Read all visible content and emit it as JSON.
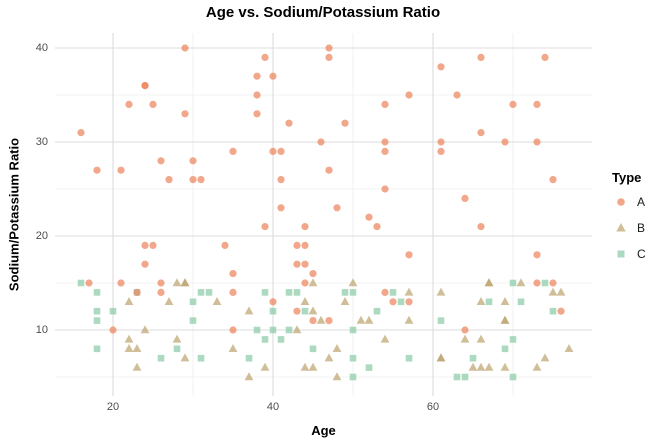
{
  "title": "Age vs. Sodium/Potassium Ratio",
  "colors": {
    "series_a": "#ED835D",
    "series_b": "#BCA570",
    "series_c": "#8CCCA7",
    "marker_opacity": 0.72,
    "grid_major": "#DCDCDC",
    "grid_minor": "#EFEFEF",
    "tick_text": "#4D4D4D",
    "text": "#000000"
  },
  "legend": {
    "title": "Type"
  },
  "chart_data": {
    "type": "scatter",
    "title": "Age vs. Sodium/Potassium Ratio",
    "xlabel": "Age",
    "ylabel": "Sodium/Potassium Ratio",
    "x_ticks": [
      20,
      40,
      60
    ],
    "y_ticks": [
      10,
      20,
      30,
      40
    ],
    "x_minor_gridlines": [
      30,
      50,
      70
    ],
    "y_minor_gridlines": [
      5,
      15,
      25,
      35
    ],
    "xlim": [
      12.8,
      79.9
    ],
    "ylim": [
      3.0,
      41.6
    ],
    "grid": "major+minor",
    "legend_position": "right",
    "legend_title": "Type",
    "series": [
      {
        "name": "A",
        "marker": "circle",
        "color": "#ED835D",
        "points": [
          [
            29,
            40
          ],
          [
            47,
            40
          ],
          [
            47,
            39
          ],
          [
            39,
            39
          ],
          [
            66,
            39
          ],
          [
            74,
            39
          ],
          [
            61,
            38
          ],
          [
            38,
            37
          ],
          [
            40,
            37
          ],
          [
            24,
            36
          ],
          [
            24,
            36
          ],
          [
            38,
            35
          ],
          [
            57,
            35
          ],
          [
            63,
            35
          ],
          [
            22,
            34
          ],
          [
            25,
            34
          ],
          [
            54,
            34
          ],
          [
            70,
            34
          ],
          [
            73,
            34
          ],
          [
            29,
            33
          ],
          [
            38,
            33
          ],
          [
            42,
            32
          ],
          [
            49,
            32
          ],
          [
            16,
            31
          ],
          [
            66,
            31
          ],
          [
            46,
            30
          ],
          [
            54,
            30
          ],
          [
            61,
            30
          ],
          [
            69,
            30
          ],
          [
            73,
            30
          ],
          [
            35,
            29
          ],
          [
            40,
            29
          ],
          [
            41,
            29
          ],
          [
            54,
            29
          ],
          [
            61,
            29
          ],
          [
            26,
            28
          ],
          [
            30,
            28
          ],
          [
            18,
            27
          ],
          [
            21,
            27
          ],
          [
            47,
            27
          ],
          [
            27,
            26
          ],
          [
            30,
            26
          ],
          [
            31,
            26
          ],
          [
            41,
            26
          ],
          [
            75,
            26
          ],
          [
            54,
            25
          ],
          [
            64,
            24
          ],
          [
            41,
            23
          ],
          [
            48,
            23
          ],
          [
            52,
            22
          ],
          [
            39,
            21
          ],
          [
            44,
            21
          ],
          [
            53,
            21
          ],
          [
            66,
            21
          ],
          [
            24,
            19
          ],
          [
            25,
            19
          ],
          [
            34,
            19
          ],
          [
            43,
            19
          ],
          [
            44,
            19
          ],
          [
            57,
            18
          ],
          [
            73,
            18
          ],
          [
            24,
            17
          ],
          [
            43,
            17
          ],
          [
            44,
            17
          ],
          [
            45,
            16
          ],
          [
            35,
            16
          ],
          [
            17,
            15
          ],
          [
            21,
            15
          ],
          [
            26,
            15
          ],
          [
            44,
            15
          ],
          [
            73,
            15
          ],
          [
            75,
            15
          ],
          [
            23,
            14
          ],
          [
            26,
            14
          ],
          [
            35,
            14
          ],
          [
            54,
            14
          ],
          [
            40,
            13
          ],
          [
            55,
            13
          ],
          [
            57,
            13
          ],
          [
            43,
            12
          ],
          [
            76,
            12
          ],
          [
            45,
            11
          ],
          [
            47,
            11
          ],
          [
            20,
            10
          ],
          [
            35,
            10
          ],
          [
            64,
            10
          ]
        ]
      },
      {
        "name": "B",
        "marker": "triangle",
        "color": "#BCA570",
        "points": [
          [
            28,
            15
          ],
          [
            29,
            15
          ],
          [
            29,
            15
          ],
          [
            45,
            15
          ],
          [
            50,
            15
          ],
          [
            67,
            15
          ],
          [
            67,
            15
          ],
          [
            71,
            15
          ],
          [
            57,
            14
          ],
          [
            61,
            14
          ],
          [
            75,
            14
          ],
          [
            76,
            14
          ],
          [
            22,
            13
          ],
          [
            27,
            13
          ],
          [
            33,
            13
          ],
          [
            44,
            13
          ],
          [
            49,
            13
          ],
          [
            66,
            13
          ],
          [
            69,
            13
          ],
          [
            37,
            12
          ],
          [
            45,
            12
          ],
          [
            46,
            11
          ],
          [
            51,
            11
          ],
          [
            52,
            11
          ],
          [
            57,
            11
          ],
          [
            69,
            11
          ],
          [
            69,
            11
          ],
          [
            24,
            10
          ],
          [
            43,
            10
          ],
          [
            22,
            9
          ],
          [
            28,
            9
          ],
          [
            54,
            9
          ],
          [
            64,
            9
          ],
          [
            66,
            9
          ],
          [
            22,
            8
          ],
          [
            23,
            8
          ],
          [
            35,
            8
          ],
          [
            48,
            8
          ],
          [
            77,
            8
          ],
          [
            29,
            7
          ],
          [
            47,
            7
          ],
          [
            61,
            7
          ],
          [
            61,
            7
          ],
          [
            74,
            7
          ],
          [
            23,
            6
          ],
          [
            39,
            6
          ],
          [
            44,
            6
          ],
          [
            45,
            6
          ],
          [
            65,
            6
          ],
          [
            66,
            6
          ],
          [
            67,
            6
          ],
          [
            69,
            6
          ],
          [
            73,
            6
          ],
          [
            37,
            5
          ],
          [
            48,
            5
          ]
        ]
      },
      {
        "name": "C",
        "marker": "square",
        "color": "#8CCCA7",
        "points": [
          [
            16,
            15
          ],
          [
            70,
            15
          ],
          [
            74,
            15
          ],
          [
            18,
            14
          ],
          [
            23,
            14
          ],
          [
            31,
            14
          ],
          [
            32,
            14
          ],
          [
            39,
            14
          ],
          [
            42,
            14
          ],
          [
            43,
            14
          ],
          [
            49,
            14
          ],
          [
            50,
            14
          ],
          [
            55,
            14
          ],
          [
            30,
            13
          ],
          [
            56,
            13
          ],
          [
            67,
            13
          ],
          [
            71,
            13
          ],
          [
            18,
            12
          ],
          [
            20,
            12
          ],
          [
            40,
            12
          ],
          [
            44,
            12
          ],
          [
            53,
            12
          ],
          [
            75,
            12
          ],
          [
            18,
            11
          ],
          [
            30,
            11
          ],
          [
            61,
            11
          ],
          [
            38,
            10
          ],
          [
            40,
            10
          ],
          [
            42,
            10
          ],
          [
            50,
            10
          ],
          [
            39,
            9
          ],
          [
            41,
            9
          ],
          [
            70,
            9
          ],
          [
            18,
            8
          ],
          [
            28,
            8
          ],
          [
            45,
            8
          ],
          [
            69,
            8
          ],
          [
            26,
            7
          ],
          [
            31,
            7
          ],
          [
            37,
            7
          ],
          [
            50,
            7
          ],
          [
            57,
            7
          ],
          [
            65,
            7
          ],
          [
            52,
            6
          ],
          [
            50,
            5
          ],
          [
            63,
            5
          ],
          [
            64,
            5
          ],
          [
            70,
            5
          ]
        ]
      }
    ]
  }
}
